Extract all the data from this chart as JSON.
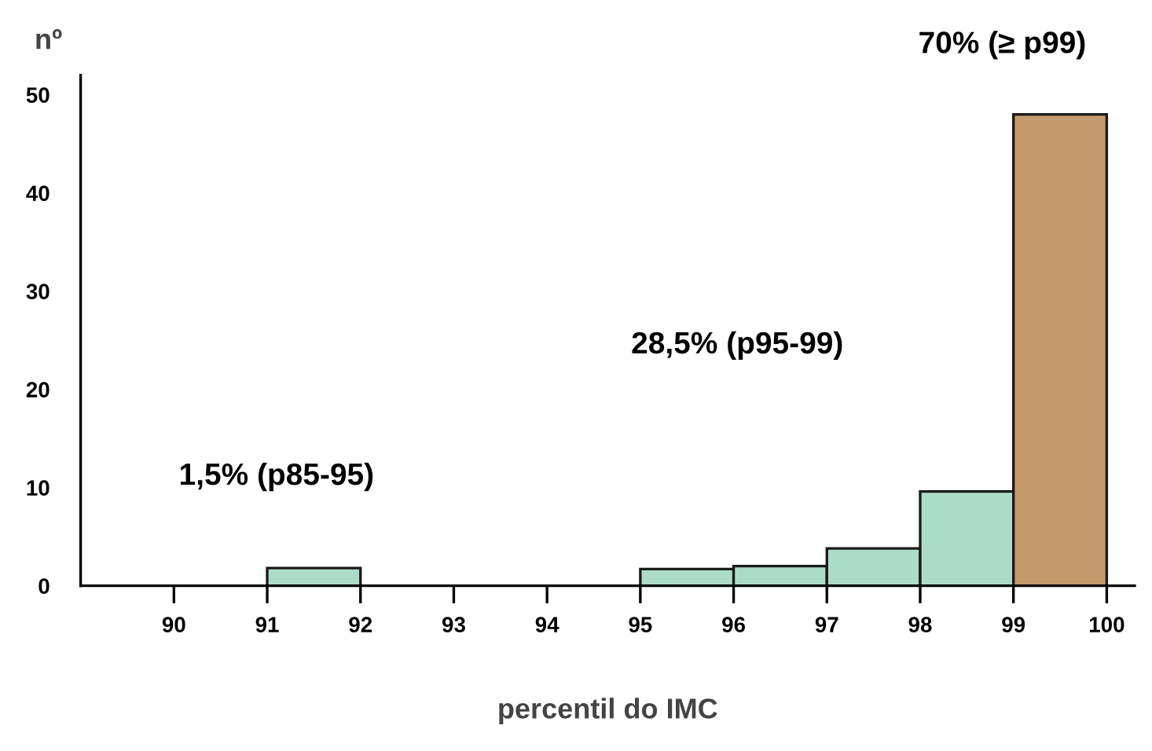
{
  "chart_data": {
    "type": "histogram",
    "xlabel": "percentil do IMC",
    "ylabel": "nº",
    "bins": [
      90,
      91,
      92,
      93,
      94,
      95,
      96,
      97,
      98,
      99,
      100
    ],
    "values": [
      0,
      1.8,
      0,
      0,
      0,
      1.7,
      2.0,
      3.8,
      9.6,
      48.0
    ],
    "colors": [
      "#acdcc7",
      "#acdcc7",
      "#acdcc7",
      "#acdcc7",
      "#acdcc7",
      "#acdcc7",
      "#acdcc7",
      "#acdcc7",
      "#acdcc7",
      "#c4996b"
    ],
    "xlim": [
      89,
      100.3
    ],
    "ylim": [
      0,
      52
    ],
    "xticks": [
      90,
      91,
      92,
      93,
      94,
      95,
      96,
      97,
      98,
      99,
      100
    ],
    "yticks": [
      0,
      10,
      20,
      30,
      40,
      50
    ],
    "annotations": [
      "1,5% (p85-95)",
      "28,5% (p95-99)",
      "70% (≥ p99)"
    ]
  }
}
